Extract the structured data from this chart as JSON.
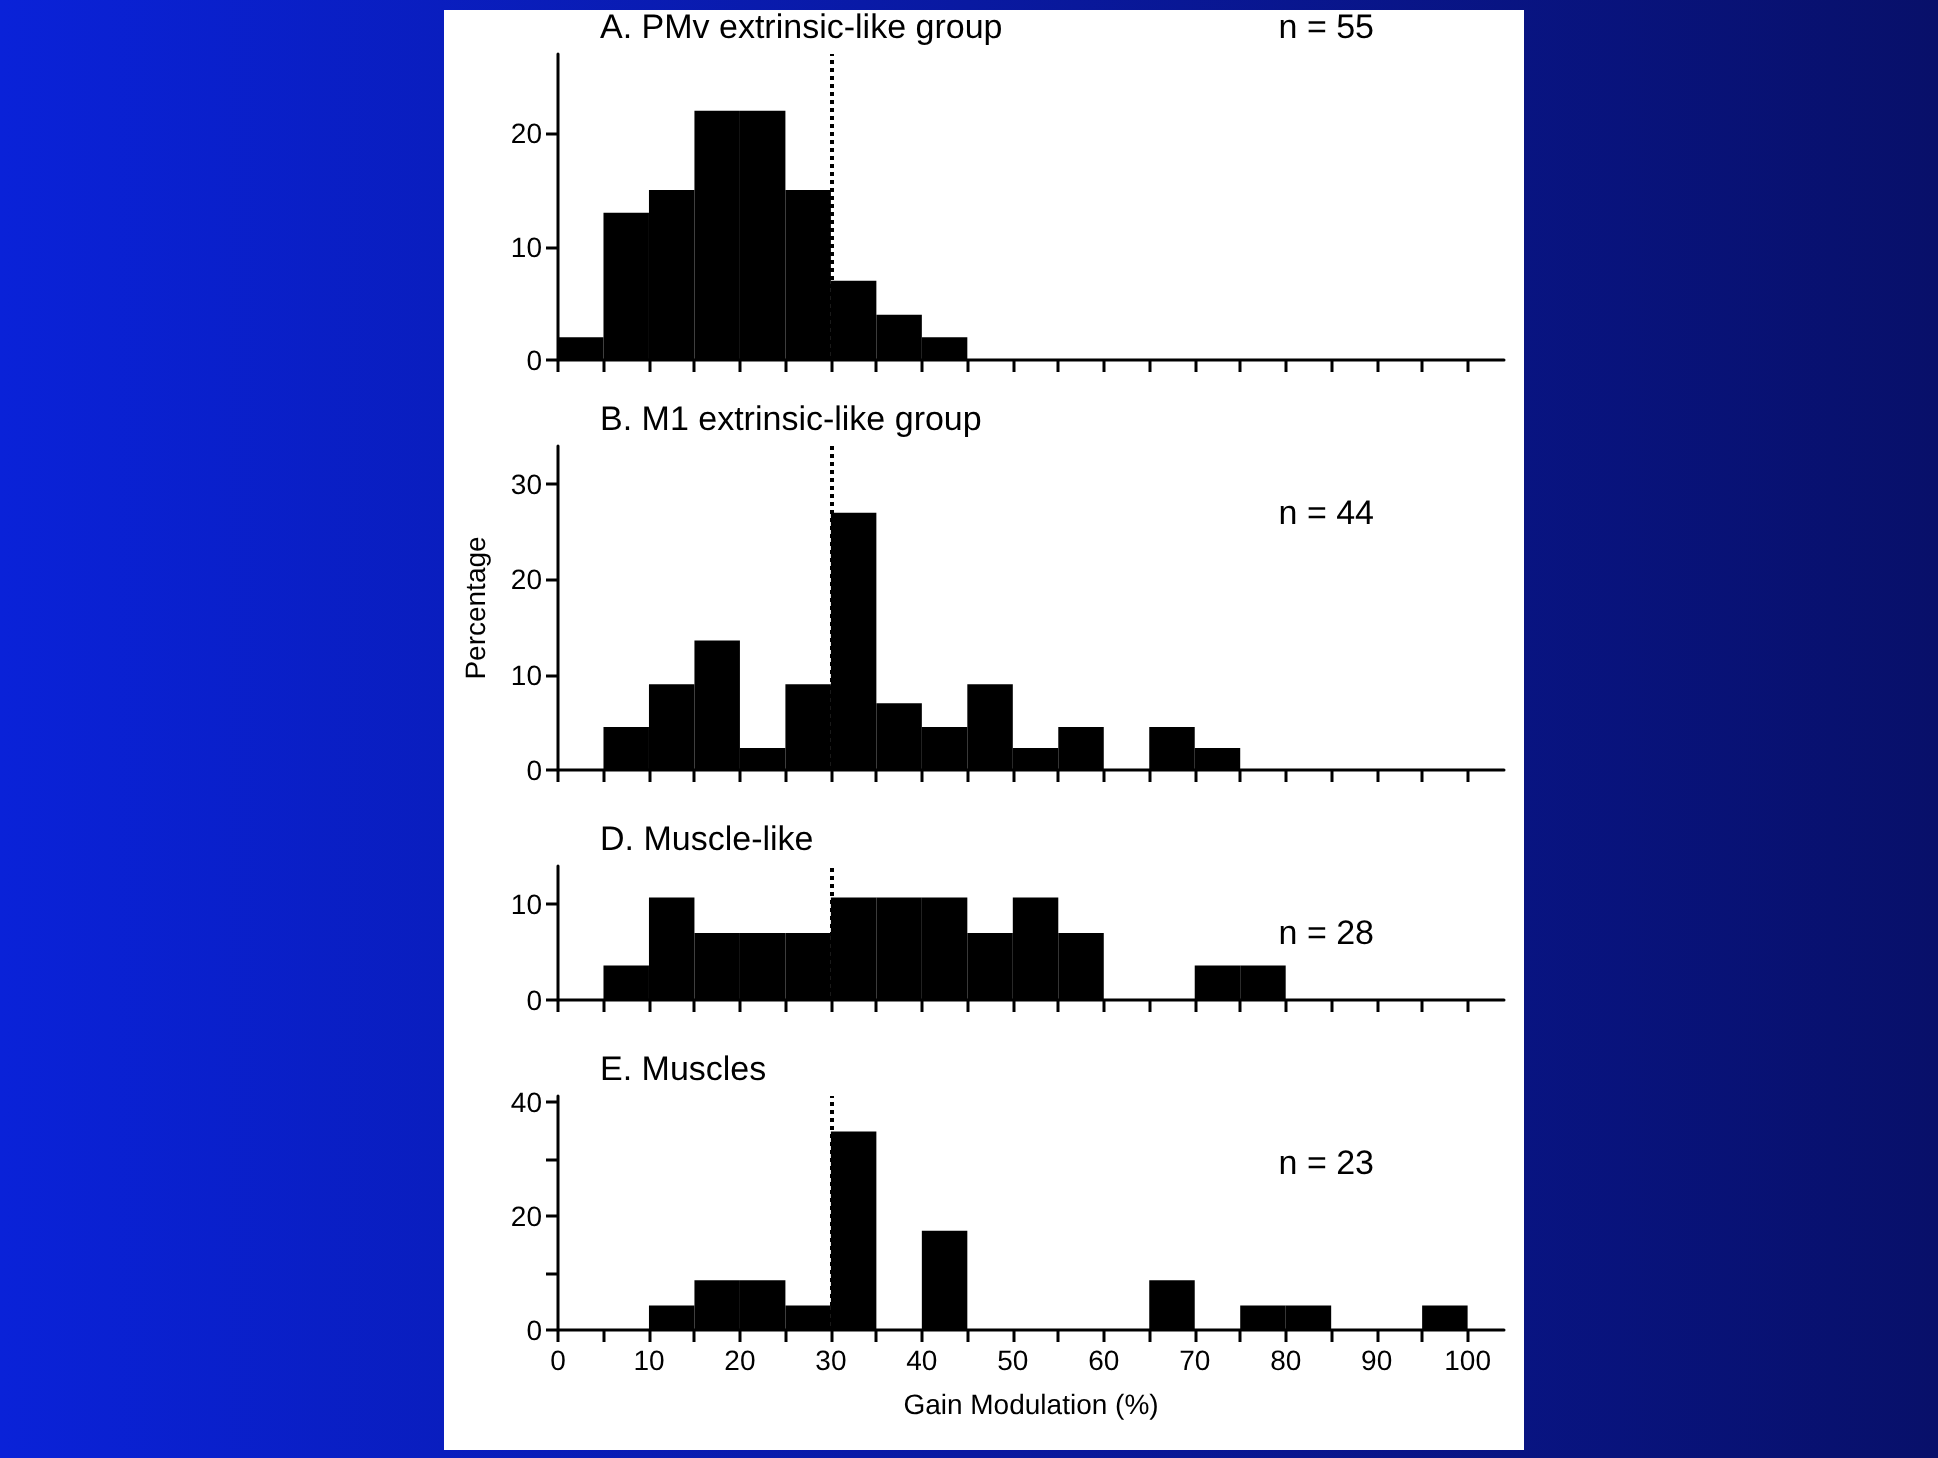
{
  "chart_data": [
    {
      "type": "histogram",
      "title": "A. PMv extrinsic-like group",
      "annotations": [
        "n = 55"
      ],
      "bins": [
        0,
        5,
        10,
        15,
        20,
        25,
        30,
        35,
        40,
        45,
        50,
        55,
        60,
        65,
        70,
        75,
        80,
        85,
        90,
        95,
        100
      ],
      "values": [
        2,
        13,
        15,
        22,
        22,
        15,
        7,
        4,
        2,
        0,
        0,
        0,
        0,
        0,
        0,
        0,
        0,
        0,
        0,
        0
      ],
      "color": "#000000",
      "xlim": [
        0,
        104
      ],
      "xticks": [
        0,
        {
          "value": 5,
          "label": null
        },
        10,
        {
          "value": 15,
          "label": null
        },
        20,
        {
          "value": 25,
          "label": null
        },
        30,
        {
          "value": 35,
          "label": null
        },
        40,
        {
          "value": 45,
          "label": null
        },
        50,
        {
          "value": 55,
          "label": null
        },
        60,
        {
          "value": 65,
          "label": null
        },
        70,
        {
          "value": 75,
          "label": null
        },
        80,
        {
          "value": 85,
          "label": null
        },
        90,
        {
          "value": 95,
          "label": null
        },
        100
      ],
      "ylim": [
        0,
        27
      ],
      "yticks": [
        0,
        10,
        20
      ],
      "tick_labels": "y",
      "grid": false,
      "ref_lines": [
        {
          "axis": "x",
          "value": 30,
          "line_style": "dotted",
          "color": "#000000"
        }
      ]
    },
    {
      "type": "histogram",
      "title": "B. M1 extrinsic-like group",
      "ylabel": "Percentage",
      "annotations": [
        "n = 44"
      ],
      "bins": [
        0,
        5,
        10,
        15,
        20,
        25,
        30,
        35,
        40,
        45,
        50,
        55,
        60,
        65,
        70,
        75,
        80,
        85,
        90,
        95,
        100
      ],
      "values": [
        0,
        4.5,
        9,
        13.6,
        2.3,
        9,
        27,
        7,
        4.5,
        9,
        2.3,
        4.5,
        0,
        4.5,
        2.3,
        0,
        0,
        0,
        0,
        0
      ],
      "color": "#000000",
      "xlim": [
        0,
        104
      ],
      "xticks": [
        0,
        {
          "value": 5,
          "label": null
        },
        10,
        {
          "value": 15,
          "label": null
        },
        20,
        {
          "value": 25,
          "label": null
        },
        30,
        {
          "value": 35,
          "label": null
        },
        40,
        {
          "value": 45,
          "label": null
        },
        50,
        {
          "value": 55,
          "label": null
        },
        60,
        {
          "value": 65,
          "label": null
        },
        70,
        {
          "value": 75,
          "label": null
        },
        80,
        {
          "value": 85,
          "label": null
        },
        90,
        {
          "value": 95,
          "label": null
        },
        100
      ],
      "ylim": [
        0,
        34
      ],
      "yticks": [
        0,
        10,
        20,
        30
      ],
      "tick_labels": "y",
      "grid": false,
      "ref_lines": [
        {
          "axis": "x",
          "value": 30,
          "line_style": "dotted",
          "color": "#000000"
        }
      ]
    },
    {
      "type": "histogram",
      "title": "D. Muscle-like",
      "annotations": [
        "n = 28"
      ],
      "bins": [
        0,
        5,
        10,
        15,
        20,
        25,
        30,
        35,
        40,
        45,
        50,
        55,
        60,
        65,
        70,
        75,
        80,
        85,
        90,
        95,
        100
      ],
      "values": [
        0,
        3.6,
        10.7,
        7,
        7,
        7,
        10.7,
        10.7,
        10.7,
        7,
        10.7,
        7,
        0,
        0,
        3.6,
        3.6,
        0,
        0,
        0,
        0
      ],
      "color": "#000000",
      "xlim": [
        0,
        104
      ],
      "xticks": [
        0,
        {
          "value": 5,
          "label": null
        },
        10,
        {
          "value": 15,
          "label": null
        },
        20,
        {
          "value": 25,
          "label": null
        },
        30,
        {
          "value": 35,
          "label": null
        },
        40,
        {
          "value": 45,
          "label": null
        },
        50,
        {
          "value": 55,
          "label": null
        },
        60,
        {
          "value": 65,
          "label": null
        },
        70,
        {
          "value": 75,
          "label": null
        },
        80,
        {
          "value": 85,
          "label": null
        },
        90,
        {
          "value": 95,
          "label": null
        },
        100
      ],
      "ylim": [
        0,
        14
      ],
      "yticks": [
        0,
        10
      ],
      "tick_labels": "y",
      "grid": false,
      "ref_lines": [
        {
          "axis": "x",
          "value": 30,
          "line_style": "dotted",
          "color": "#000000"
        }
      ]
    },
    {
      "type": "histogram",
      "title": "E. Muscles",
      "xlabel": "Gain Modulation (%)",
      "annotations": [
        "n = 23"
      ],
      "bins": [
        0,
        5,
        10,
        15,
        20,
        25,
        30,
        35,
        40,
        45,
        50,
        55,
        60,
        65,
        70,
        75,
        80,
        85,
        90,
        95,
        100
      ],
      "values": [
        0,
        0,
        4.3,
        8.7,
        8.7,
        4.3,
        34.8,
        0,
        17.4,
        0,
        0,
        0,
        0,
        8.7,
        0,
        4.3,
        4.3,
        0,
        0,
        4.3
      ],
      "color": "#000000",
      "xlim": [
        0,
        104
      ],
      "xticks": [
        0,
        {
          "value": 5,
          "label": null
        },
        10,
        {
          "value": 15,
          "label": null
        },
        20,
        {
          "value": 25,
          "label": null
        },
        30,
        {
          "value": 35,
          "label": null
        },
        40,
        {
          "value": 45,
          "label": null
        },
        50,
        {
          "value": 55,
          "label": null
        },
        60,
        {
          "value": 65,
          "label": null
        },
        70,
        {
          "value": 75,
          "label": null
        },
        80,
        {
          "value": 85,
          "label": null
        },
        90,
        {
          "value": 95,
          "label": null
        },
        100
      ],
      "ylim": [
        0,
        41
      ],
      "yticks": [
        0,
        {
          "value": 10,
          "label": null
        },
        20,
        {
          "value": 30,
          "label": null
        },
        40
      ],
      "grid": false,
      "ref_lines": [
        {
          "axis": "x",
          "value": 30,
          "line_style": "dotted",
          "color": "#000000"
        }
      ]
    }
  ]
}
